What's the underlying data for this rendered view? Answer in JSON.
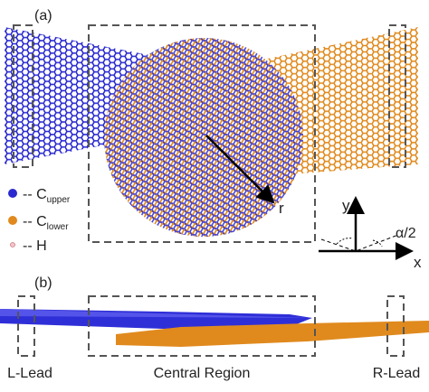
{
  "panel_a": {
    "label": "(a)",
    "legend": [
      {
        "prefix": "-- C",
        "subscript": "upper"
      },
      {
        "prefix": "-- C",
        "subscript": "lower"
      },
      {
        "prefix": "-- H"
      }
    ],
    "axes": {
      "y": "y",
      "x": "x",
      "angle": "α/2"
    },
    "vector": "r"
  },
  "panel_b": {
    "label": "(b)",
    "regions": [
      "L-Lead",
      "Central Region",
      "R-Lead"
    ]
  }
}
